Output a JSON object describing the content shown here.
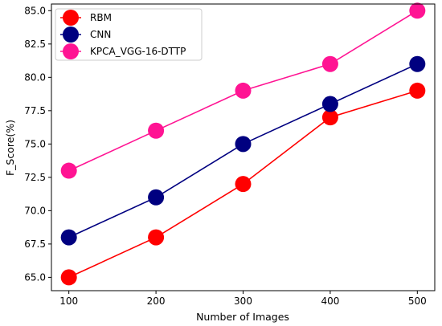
{
  "chart_data": {
    "type": "line",
    "title": "",
    "xlabel": "Number of Images",
    "ylabel": "F_Score(%)",
    "x": [
      100,
      200,
      300,
      400,
      500
    ],
    "xticks": [
      "100",
      "200",
      "300",
      "400",
      "500"
    ],
    "xlim": [
      80,
      520
    ],
    "ylim": [
      64.0,
      85.5
    ],
    "yticks": [
      "65.0",
      "67.5",
      "70.0",
      "72.5",
      "75.0",
      "77.5",
      "80.0",
      "82.5",
      "85.0"
    ],
    "grid": false,
    "legend_position": "top-left",
    "series": [
      {
        "name": "RBM",
        "color": "#ff0000",
        "values": [
          65,
          68,
          72,
          77,
          79
        ]
      },
      {
        "name": "CNN",
        "color": "#000080",
        "values": [
          68,
          71,
          75,
          78,
          81
        ]
      },
      {
        "name": "KPCA_VGG-16-DTTP",
        "color": "#ff1493",
        "values": [
          73,
          76,
          79,
          81,
          85
        ]
      }
    ]
  }
}
